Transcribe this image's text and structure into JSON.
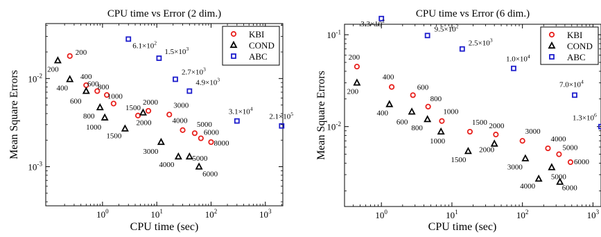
{
  "chart_data": [
    {
      "type": "scatter",
      "title": "CPU time vs Error (2 dim.)",
      "xlabel": "CPU time (sec)",
      "ylabel": "Mean Square Errors",
      "xscale": "log",
      "yscale": "log",
      "xlim": [
        0.09,
        2100
      ],
      "ylim": [
        0.00036,
        0.042
      ],
      "xticks": [
        {
          "v": 1,
          "label": "10",
          "exp": "0"
        },
        {
          "v": 10,
          "label": "10",
          "exp": "1"
        },
        {
          "v": 100,
          "label": "10",
          "exp": "2"
        },
        {
          "v": 1000,
          "label": "10",
          "exp": "3"
        }
      ],
      "yticks": [
        {
          "v": 0.001,
          "label": "10",
          "exp": "-3"
        },
        {
          "v": 0.01,
          "label": "10",
          "exp": "-2"
        }
      ],
      "legend_position": "top-right",
      "series": [
        {
          "name": "KBI",
          "marker": "circle",
          "color": "#e8211d",
          "points": [
            {
              "x": 0.25,
              "y": 0.018,
              "label": "200"
            },
            {
              "x": 0.5,
              "y": 0.0084,
              "label": "400"
            },
            {
              "x": 0.8,
              "y": 0.0072,
              "label": "600"
            },
            {
              "x": 1.2,
              "y": 0.0065,
              "label": "800"
            },
            {
              "x": 1.6,
              "y": 0.0052,
              "label": "1000"
            },
            {
              "x": 4.5,
              "y": 0.0038,
              "label": "1500"
            },
            {
              "x": 7.0,
              "y": 0.0043,
              "label": "2000"
            },
            {
              "x": 17,
              "y": 0.0039,
              "label": "3000"
            },
            {
              "x": 30,
              "y": 0.0026,
              "label": "4000"
            },
            {
              "x": 50,
              "y": 0.0024,
              "label": "5000"
            },
            {
              "x": 65,
              "y": 0.0021,
              "label": "6000"
            },
            {
              "x": 100,
              "y": 0.0019,
              "label": "8000"
            }
          ]
        },
        {
          "name": "COND",
          "marker": "triangle",
          "color": "#000000",
          "points": [
            {
              "x": 0.15,
              "y": 0.016,
              "label": "200"
            },
            {
              "x": 0.25,
              "y": 0.0098,
              "label": "400"
            },
            {
              "x": 0.5,
              "y": 0.0072,
              "label": "600"
            },
            {
              "x": 0.9,
              "y": 0.0047,
              "label": "800"
            },
            {
              "x": 1.1,
              "y": 0.0036,
              "label": "1000"
            },
            {
              "x": 2.6,
              "y": 0.0027,
              "label": "1500"
            },
            {
              "x": 5.6,
              "y": 0.0041,
              "label": "2000"
            },
            {
              "x": 12,
              "y": 0.0019,
              "label": "3000"
            },
            {
              "x": 25,
              "y": 0.0013,
              "label": "4000"
            },
            {
              "x": 40,
              "y": 0.0013,
              "label": "5000"
            },
            {
              "x": 60,
              "y": 0.001,
              "label": "6000"
            }
          ]
        },
        {
          "name": "ABC",
          "marker": "square",
          "color": "#1c1ccc",
          "points": [
            {
              "x": 3.0,
              "y": 0.028,
              "label": "6.1×10",
              "exp": "2"
            },
            {
              "x": 11,
              "y": 0.017,
              "label": "1.5×10",
              "exp": "3"
            },
            {
              "x": 22,
              "y": 0.0098,
              "label": "2.7×10",
              "exp": "3"
            },
            {
              "x": 40,
              "y": 0.0072,
              "label": "4.9×10",
              "exp": "3"
            },
            {
              "x": 300,
              "y": 0.0033,
              "label": "3.1×10",
              "exp": "4"
            },
            {
              "x": 2000,
              "y": 0.0029,
              "label": "2.1×10",
              "exp": "5"
            }
          ]
        }
      ]
    },
    {
      "type": "scatter",
      "title": "CPU time vs Error (6 dim.)",
      "xlabel": "CPU time (sec)",
      "ylabel": "Mean Square Errors",
      "xscale": "log",
      "yscale": "log",
      "xlim": [
        0.3,
        1300
      ],
      "ylim": [
        0.00135,
        0.13
      ],
      "xticks": [
        {
          "v": 1,
          "label": "10",
          "exp": "0"
        },
        {
          "v": 10,
          "label": "10",
          "exp": "1"
        },
        {
          "v": 100,
          "label": "10",
          "exp": "2"
        },
        {
          "v": 1000,
          "label": "10",
          "exp": "3"
        }
      ],
      "yticks": [
        {
          "v": 0.01,
          "label": "10",
          "exp": "-2"
        },
        {
          "v": 0.1,
          "label": "10",
          "exp": "-1"
        }
      ],
      "legend_position": "top-right",
      "series": [
        {
          "name": "KBI",
          "marker": "circle",
          "color": "#e8211d",
          "points": [
            {
              "x": 0.45,
              "y": 0.045,
              "label": "200"
            },
            {
              "x": 1.4,
              "y": 0.027,
              "label": "400"
            },
            {
              "x": 2.8,
              "y": 0.022,
              "label": "600"
            },
            {
              "x": 4.6,
              "y": 0.0165,
              "label": "800"
            },
            {
              "x": 7.2,
              "y": 0.0115,
              "label": "1000"
            },
            {
              "x": 18,
              "y": 0.0088,
              "label": "1500"
            },
            {
              "x": 42,
              "y": 0.0082,
              "label": "2000"
            },
            {
              "x": 100,
              "y": 0.007,
              "label": "3000"
            },
            {
              "x": 230,
              "y": 0.0058,
              "label": "4000"
            },
            {
              "x": 330,
              "y": 0.005,
              "label": "5000"
            },
            {
              "x": 480,
              "y": 0.0041,
              "label": "6000"
            }
          ]
        },
        {
          "name": "COND",
          "marker": "triangle",
          "color": "#000000",
          "points": [
            {
              "x": 0.45,
              "y": 0.03,
              "label": "200"
            },
            {
              "x": 1.3,
              "y": 0.0175,
              "label": "400"
            },
            {
              "x": 2.7,
              "y": 0.0145,
              "label": "600"
            },
            {
              "x": 4.5,
              "y": 0.012,
              "label": "800"
            },
            {
              "x": 7.0,
              "y": 0.0088,
              "label": "1000"
            },
            {
              "x": 17,
              "y": 0.0054,
              "label": "1500"
            },
            {
              "x": 40,
              "y": 0.0065,
              "label": "2000"
            },
            {
              "x": 110,
              "y": 0.0045,
              "label": "3000"
            },
            {
              "x": 170,
              "y": 0.0027,
              "label": "4000"
            },
            {
              "x": 260,
              "y": 0.0036,
              "label": "5000"
            },
            {
              "x": 340,
              "y": 0.0025,
              "label": "6000"
            }
          ]
        },
        {
          "name": "ABC",
          "marker": "square",
          "color": "#1c1ccc",
          "points": [
            {
              "x": 1.0,
              "y": 0.15,
              "label": "3.3×10",
              "exp": "2"
            },
            {
              "x": 4.5,
              "y": 0.098,
              "label": "9.5×10",
              "exp": "2"
            },
            {
              "x": 14,
              "y": 0.07,
              "label": "2.5×10",
              "exp": "3"
            },
            {
              "x": 75,
              "y": 0.043,
              "label": "1.0×10",
              "exp": "4"
            },
            {
              "x": 550,
              "y": 0.022,
              "label": "7.0×10",
              "exp": "4"
            },
            {
              "x": 1300,
              "y": 0.01,
              "label": "1.3×10",
              "exp": "6"
            }
          ]
        }
      ]
    }
  ]
}
